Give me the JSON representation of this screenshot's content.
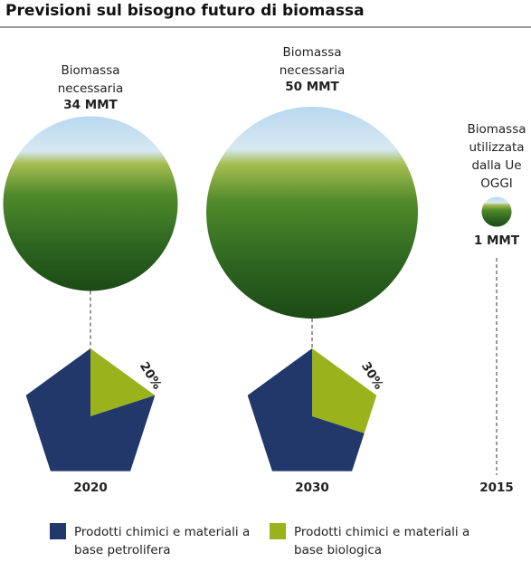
{
  "chart_data": {
    "type": "pie",
    "title": "Previsioni sul bisogno futuro di biomassa",
    "series": [
      {
        "name": "Prodotti chimici e materiali a base petrolifera",
        "color": "#22386b"
      },
      {
        "name": "Prodotti chimici e materiali a base biologica",
        "color": "#9ab31c"
      }
    ],
    "groups": [
      {
        "year": "2020",
        "caption": "Biomassa necessaria",
        "amount": {
          "value": 34,
          "label": "34 MMT"
        },
        "values": [
          80,
          20
        ],
        "value_labels": [
          null,
          "20%"
        ]
      },
      {
        "year": "2030",
        "caption": "Biomassa necessaria",
        "amount": {
          "value": 50,
          "label": "50 MMT"
        },
        "values": [
          70,
          30
        ],
        "value_labels": [
          null,
          "30%"
        ]
      },
      {
        "year": "2015",
        "caption": "Biomassa utilizzata dalla Ue OGGI",
        "amount": {
          "value": 1,
          "label": "1 MMT"
        }
      }
    ]
  }
}
